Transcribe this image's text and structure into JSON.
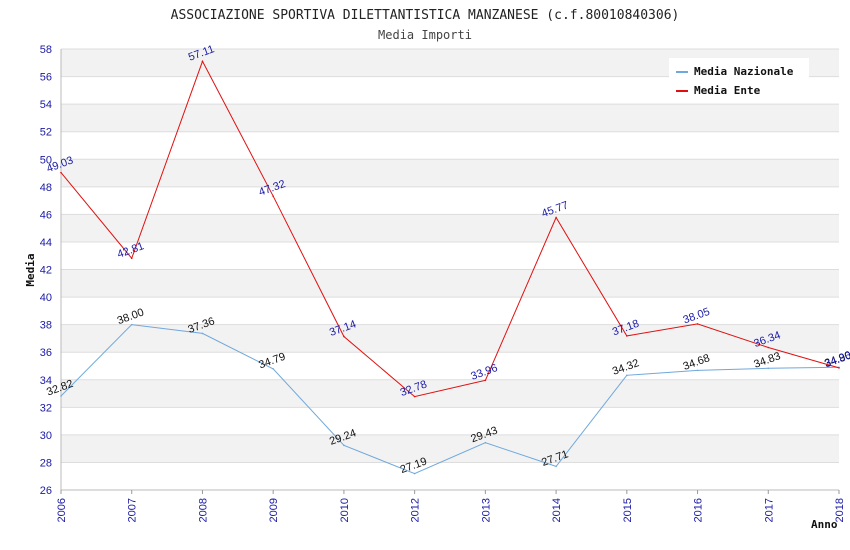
{
  "chart_data": {
    "type": "line",
    "title": "ASSOCIAZIONE SPORTIVA DILETTANTISTICA MANZANESE (c.f.80010840306)",
    "subtitle": "Media Importi",
    "xlabel": "Anno",
    "ylabel": "Media",
    "categories": [
      "2006",
      "2007",
      "2008",
      "2009",
      "2010",
      "2012",
      "2013",
      "2014",
      "2015",
      "2016",
      "2017",
      "2018"
    ],
    "ylim": [
      26,
      58
    ],
    "ytick_step": 2,
    "grid": true,
    "legend_position": "top-right",
    "series": [
      {
        "name": "Media Nazionale",
        "color": "#6fa8dc",
        "label_color": "#111111",
        "values": [
          32.82,
          38.0,
          37.36,
          34.79,
          29.24,
          27.19,
          29.43,
          27.71,
          34.32,
          34.68,
          34.83,
          34.9
        ]
      },
      {
        "name": "Media Ente",
        "color": "#e01010",
        "label_color": "#1a1aa6",
        "values": [
          49.03,
          42.81,
          57.11,
          47.32,
          37.14,
          32.78,
          33.96,
          45.77,
          37.18,
          38.05,
          36.34,
          34.86
        ]
      }
    ]
  }
}
